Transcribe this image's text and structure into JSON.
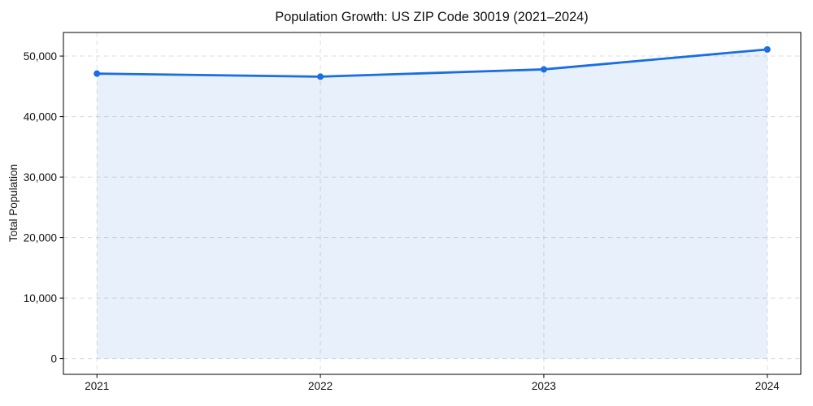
{
  "chart_data": {
    "type": "line",
    "title": "Population Growth: US ZIP Code 30019 (2021–2024)",
    "xlabel": "",
    "ylabel": "Total Population",
    "series": [
      {
        "name": "Total Population",
        "x": [
          2021,
          2022,
          2023,
          2024
        ],
        "values": [
          47100,
          46600,
          47800,
          51100
        ]
      }
    ],
    "x_ticks": [
      2021,
      2022,
      2023,
      2024
    ],
    "x_tick_labels": [
      "2021",
      "2022",
      "2023",
      "2024"
    ],
    "y_ticks": [
      0,
      10000,
      20000,
      30000,
      40000,
      50000
    ],
    "y_tick_labels": [
      "0",
      "10,000",
      "20,000",
      "30,000",
      "40,000",
      "50,000"
    ],
    "xlim": [
      2020.85,
      2024.15
    ],
    "ylim": [
      -2600,
      53900
    ],
    "grid": true,
    "grid_style": "dashed",
    "legend": "none",
    "area_fill_to_zero": true,
    "marker": "circle",
    "colors": {
      "line": "#1a6ee0",
      "marker": "#1a6ee0",
      "fill": "#1a6ee0",
      "fill_opacity": 0.1,
      "grid": "#dcdcdc",
      "axis": "#000000",
      "text": "#111111",
      "background": "#ffffff"
    }
  }
}
